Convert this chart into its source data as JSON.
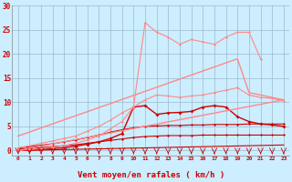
{
  "xlabel": "Vent moyen/en rafales ( km/h )",
  "bg_color": "#cceeff",
  "grid_color": "#99bbcc",
  "xlim": [
    -0.5,
    23.5
  ],
  "ylim": [
    -1,
    30
  ],
  "yticks": [
    0,
    5,
    10,
    15,
    20,
    25,
    30
  ],
  "xticks": [
    0,
    1,
    2,
    3,
    4,
    5,
    6,
    7,
    8,
    9,
    10,
    11,
    12,
    13,
    14,
    15,
    16,
    17,
    18,
    19,
    20,
    21,
    22,
    23
  ],
  "lines": [
    {
      "x": [
        0,
        1,
        2,
        3,
        4,
        5,
        6,
        7,
        8,
        9,
        10,
        11,
        12,
        13,
        14,
        15,
        16,
        17,
        18,
        19,
        20,
        21,
        22,
        23
      ],
      "y": [
        0,
        0.05,
        0.1,
        0.15,
        0.2,
        0.25,
        0.3,
        0.35,
        0.4,
        0.45,
        0.5,
        0.55,
        0.6,
        0.65,
        0.7,
        0.75,
        0.8,
        0.85,
        0.9,
        0.95,
        1.0,
        1.05,
        1.1,
        1.15
      ],
      "color": "#cc0000",
      "lw": 0.8,
      "marker": null,
      "ms": 0
    },
    {
      "x": [
        0,
        1,
        2,
        3,
        4,
        5,
        6,
        7,
        8,
        9,
        10,
        11,
        12,
        13,
        14,
        15,
        16,
        17,
        18,
        19,
        20,
        21,
        22,
        23
      ],
      "y": [
        0.3,
        0.4,
        0.6,
        0.8,
        1.0,
        1.2,
        1.5,
        1.8,
        2.1,
        2.4,
        2.7,
        2.9,
        3.0,
        3.1,
        3.1,
        3.1,
        3.2,
        3.2,
        3.2,
        3.2,
        3.2,
        3.2,
        3.2,
        3.2
      ],
      "color": "#cc0000",
      "lw": 0.8,
      "marker": "D",
      "ms": 1.5
    },
    {
      "x": [
        0,
        1,
        2,
        3,
        4,
        5,
        6,
        7,
        8,
        9,
        10,
        11,
        12,
        13,
        14,
        15,
        16,
        17,
        18,
        19,
        20,
        21,
        22,
        23
      ],
      "y": [
        0.5,
        0.8,
        1.1,
        1.4,
        1.8,
        2.2,
        2.7,
        3.2,
        3.8,
        4.3,
        4.7,
        5.0,
        5.1,
        5.2,
        5.2,
        5.3,
        5.3,
        5.4,
        5.4,
        5.4,
        5.5,
        5.5,
        5.5,
        5.5
      ],
      "color": "#cc0000",
      "lw": 0.8,
      "marker": "D",
      "ms": 1.5
    },
    {
      "x": [
        0,
        1,
        2,
        3,
        4,
        5,
        6,
        7,
        8,
        9,
        10,
        11,
        12,
        13,
        14,
        15,
        16,
        17,
        18,
        19,
        20,
        21,
        22,
        23
      ],
      "y": [
        0,
        0.1,
        0.2,
        0.4,
        0.6,
        0.9,
        1.3,
        1.8,
        2.5,
        3.5,
        9.0,
        9.3,
        7.5,
        7.8,
        7.9,
        8.1,
        9.0,
        9.3,
        9.0,
        7.0,
        6.0,
        5.5,
        5.3,
        5.0
      ],
      "color": "#cc0000",
      "lw": 1.0,
      "marker": "D",
      "ms": 2.0
    },
    {
      "x": [
        0,
        23
      ],
      "y": [
        0,
        10.5
      ],
      "color": "#ff8888",
      "lw": 1.0,
      "marker": null,
      "ms": 0
    },
    {
      "x": [
        0,
        19,
        20,
        21,
        22,
        23
      ],
      "y": [
        3.0,
        19.0,
        12.0,
        11.5,
        11.0,
        10.5
      ],
      "color": "#ff8888",
      "lw": 1.0,
      "marker": null,
      "ms": 0
    },
    {
      "x": [
        0,
        1,
        2,
        3,
        4,
        5,
        6,
        7,
        8,
        9,
        10,
        11,
        12,
        13,
        14,
        15,
        16,
        17,
        18,
        19,
        20,
        21,
        22,
        23
      ],
      "y": [
        0.5,
        1.0,
        1.5,
        2.0,
        2.5,
        3.0,
        4.0,
        5.0,
        6.3,
        7.8,
        9.0,
        10.5,
        11.5,
        11.3,
        11.0,
        11.3,
        11.5,
        12.0,
        12.5,
        13.0,
        11.5,
        11.0,
        10.8,
        10.3
      ],
      "color": "#ff8888",
      "lw": 0.8,
      "marker": "D",
      "ms": 1.5
    },
    {
      "x": [
        0,
        1,
        2,
        3,
        4,
        5,
        6,
        7,
        8,
        9,
        10,
        11,
        12,
        13,
        14,
        15,
        16,
        17,
        18,
        19,
        20,
        21
      ],
      "y": [
        0,
        0.2,
        0.4,
        0.7,
        1.0,
        1.5,
        2.2,
        3.0,
        4.5,
        6.0,
        9.0,
        26.5,
        24.5,
        23.5,
        22.0,
        23.0,
        22.5,
        22.0,
        23.5,
        24.5,
        24.5,
        19.0
      ],
      "color": "#ff8888",
      "lw": 0.8,
      "marker": "D",
      "ms": 1.5
    }
  ],
  "axis_label_color": "#cc0000",
  "arrow_color": "#cc0000"
}
